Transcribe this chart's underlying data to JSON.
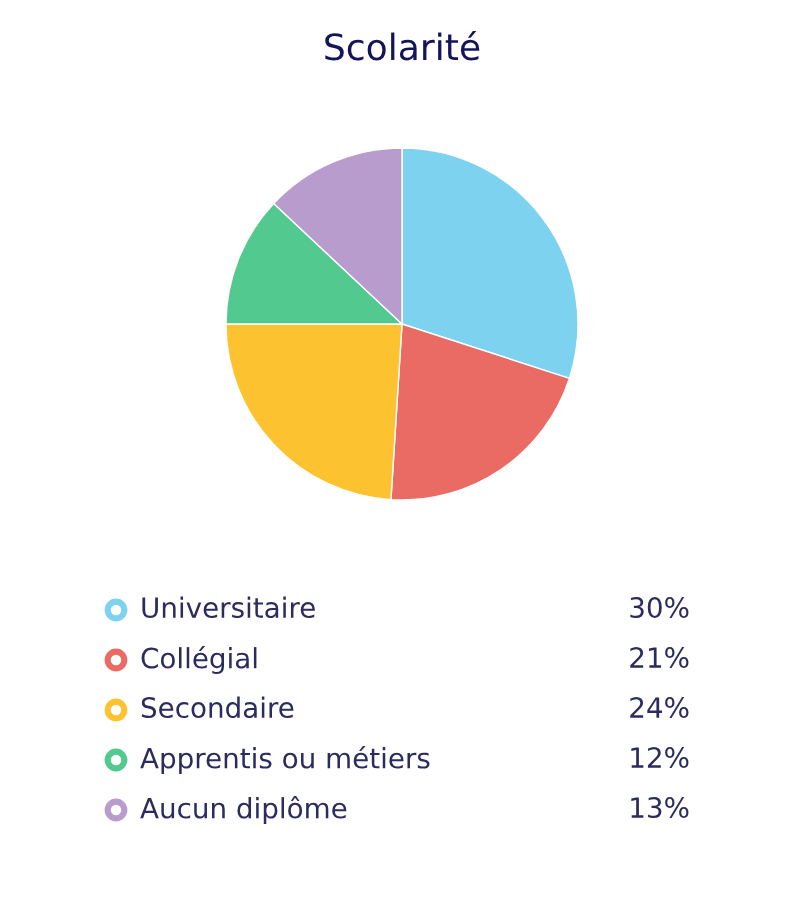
{
  "chart_data": {
    "type": "pie",
    "title": "Scolarité",
    "categories": [
      "Universitaire",
      "Collégial",
      "Secondaire",
      "Apprentis ou métiers",
      "Aucun diplôme"
    ],
    "values": [
      30,
      21,
      24,
      12,
      13
    ],
    "colors": [
      "#7dd3ef",
      "#ea6b64",
      "#fcc22f",
      "#52c98e",
      "#b89ccd"
    ],
    "value_labels": [
      "30%",
      "21%",
      "24%",
      "12%",
      "13%"
    ],
    "legend": "bottom"
  }
}
